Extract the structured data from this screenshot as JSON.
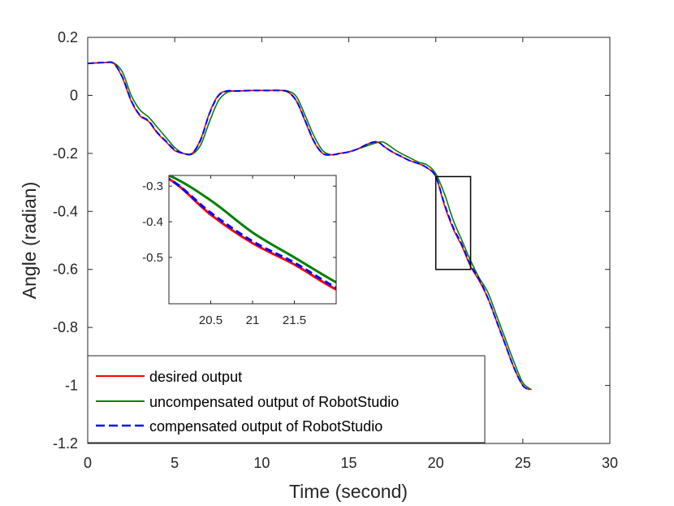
{
  "chart_data": {
    "type": "line",
    "xlabel": "Time (second)",
    "ylabel": "Angle (radian)",
    "xlim": [
      0,
      30
    ],
    "ylim": [
      -1.2,
      0.2
    ],
    "xticks": [
      0,
      5,
      10,
      15,
      20,
      25,
      30
    ],
    "yticks": [
      0.2,
      0,
      -0.2,
      -0.4,
      -0.6,
      -0.8,
      -1,
      -1.2
    ],
    "xtick_labels": [
      "0",
      "5",
      "10",
      "15",
      "20",
      "25",
      "30"
    ],
    "ytick_labels": [
      "0.2",
      "0",
      "-0.2",
      "-0.4",
      "-0.6",
      "-0.8",
      "-1",
      "-1.2"
    ],
    "grid": false,
    "legend_position": "bottom-left",
    "series": [
      {
        "name": "desired output",
        "color": "#ff0000",
        "dash": "solid",
        "x": [
          0,
          0.5,
          1,
          1.5,
          2,
          2.5,
          3,
          3.5,
          4,
          4.5,
          5,
          5.5,
          6,
          6.5,
          7,
          7.5,
          8,
          8.5,
          9,
          9.5,
          10,
          10.5,
          11,
          11.5,
          12,
          12.5,
          13,
          13.5,
          14,
          14.5,
          15,
          15.5,
          16,
          16.5,
          16.8,
          17,
          17.5,
          18,
          18.5,
          19,
          19.5,
          20,
          20.5,
          21,
          21.5,
          22,
          22.5,
          23,
          23.5,
          24,
          24.5,
          25,
          25.4
        ],
        "y": [
          0.11,
          0.112,
          0.113,
          0.11,
          0.06,
          -0.02,
          -0.07,
          -0.09,
          -0.13,
          -0.16,
          -0.19,
          -0.2,
          -0.2,
          -0.15,
          -0.06,
          0.0,
          0.015,
          0.015,
          0.016,
          0.017,
          0.017,
          0.017,
          0.017,
          0.012,
          -0.02,
          -0.09,
          -0.16,
          -0.2,
          -0.205,
          -0.2,
          -0.195,
          -0.185,
          -0.17,
          -0.16,
          -0.165,
          -0.175,
          -0.195,
          -0.21,
          -0.225,
          -0.235,
          -0.25,
          -0.28,
          -0.38,
          -0.46,
          -0.52,
          -0.59,
          -0.64,
          -0.7,
          -0.78,
          -0.86,
          -0.94,
          -1.0,
          -1.015
        ]
      },
      {
        "name": "uncompensated output of RobotStudio",
        "color": "#008000",
        "dash": "solid",
        "x": [
          0,
          0.5,
          1,
          1.5,
          2,
          2.5,
          3,
          3.5,
          4,
          4.5,
          5,
          5.5,
          6,
          6.5,
          7,
          7.5,
          8,
          8.5,
          9,
          9.5,
          10,
          10.5,
          11,
          11.5,
          12,
          12.5,
          13,
          13.5,
          14,
          14.5,
          15,
          15.5,
          16,
          16.5,
          16.9,
          17.2,
          17.6,
          18,
          18.5,
          19,
          19.5,
          20,
          20.5,
          21,
          21.5,
          22,
          22.5,
          23,
          23.5,
          24,
          24.5,
          25,
          25.5
        ],
        "y": [
          0.11,
          0.112,
          0.113,
          0.112,
          0.08,
          0.0,
          -0.05,
          -0.075,
          -0.11,
          -0.145,
          -0.18,
          -0.2,
          -0.203,
          -0.17,
          -0.09,
          -0.02,
          0.01,
          0.015,
          0.016,
          0.017,
          0.017,
          0.017,
          0.017,
          0.015,
          -0.005,
          -0.07,
          -0.14,
          -0.19,
          -0.205,
          -0.2,
          -0.195,
          -0.185,
          -0.175,
          -0.165,
          -0.16,
          -0.168,
          -0.185,
          -0.2,
          -0.215,
          -0.23,
          -0.24,
          -0.27,
          -0.34,
          -0.43,
          -0.5,
          -0.57,
          -0.63,
          -0.68,
          -0.76,
          -0.84,
          -0.92,
          -0.99,
          -1.015
        ]
      },
      {
        "name": "compensated output of RobotStudio",
        "color": "#0000ff",
        "dash": "dashed",
        "x": [
          0,
          0.5,
          1,
          1.5,
          2,
          2.5,
          3,
          3.5,
          4,
          4.5,
          5,
          5.5,
          6,
          6.5,
          7,
          7.5,
          8,
          8.5,
          9,
          9.5,
          10,
          10.5,
          11,
          11.5,
          12,
          12.5,
          13,
          13.5,
          14,
          14.5,
          15,
          15.5,
          16,
          16.5,
          16.8,
          17,
          17.5,
          18,
          18.5,
          19,
          19.5,
          20,
          20.5,
          21,
          21.5,
          22,
          22.5,
          23,
          23.5,
          24,
          24.5,
          25,
          25.4
        ],
        "y": [
          0.11,
          0.112,
          0.113,
          0.11,
          0.062,
          -0.018,
          -0.068,
          -0.088,
          -0.128,
          -0.158,
          -0.188,
          -0.2,
          -0.2,
          -0.152,
          -0.062,
          -0.002,
          0.015,
          0.015,
          0.016,
          0.017,
          0.017,
          0.017,
          0.017,
          0.012,
          -0.02,
          -0.088,
          -0.158,
          -0.2,
          -0.205,
          -0.2,
          -0.195,
          -0.185,
          -0.17,
          -0.16,
          -0.165,
          -0.175,
          -0.195,
          -0.21,
          -0.225,
          -0.235,
          -0.25,
          -0.28,
          -0.375,
          -0.455,
          -0.515,
          -0.585,
          -0.635,
          -0.7,
          -0.78,
          -0.86,
          -0.94,
          -1.0,
          -1.015
        ]
      }
    ],
    "zoom_box": {
      "x": [
        20,
        22
      ],
      "y": [
        -0.6,
        -0.28
      ]
    },
    "inset": {
      "xlim": [
        20,
        22
      ],
      "ylim": [
        -0.63,
        -0.27
      ],
      "xticks": [
        20.5,
        21,
        21.5
      ],
      "yticks": [
        -0.3,
        -0.4,
        -0.5
      ],
      "xtick_labels": [
        "20.5",
        "21",
        "21.5"
      ],
      "ytick_labels": [
        "-0.3",
        "-0.4",
        "-0.5"
      ]
    }
  }
}
